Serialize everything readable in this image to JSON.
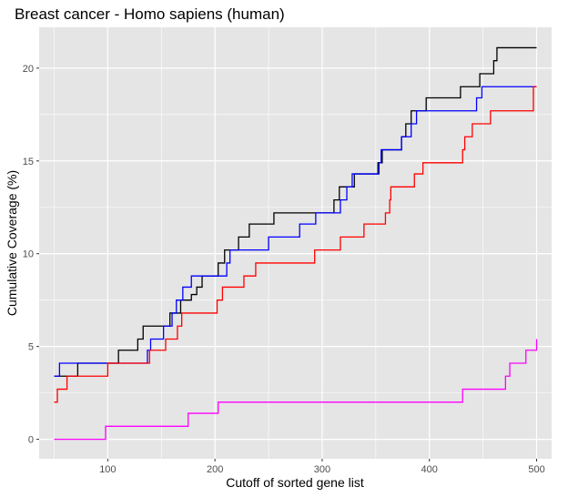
{
  "chart_data": {
    "type": "line",
    "title": "Breast cancer - Homo sapiens (human)",
    "xlabel": "Cutoff of sorted gene list",
    "ylabel": "Cumulative Coverage (%)",
    "xlim": [
      36,
      514
    ],
    "ylim": [
      -1.05,
      22.2
    ],
    "xticks": [
      100,
      200,
      300,
      400,
      500
    ],
    "yticks": [
      0,
      5,
      10,
      15,
      20
    ],
    "grid": true,
    "legend": "none",
    "series": [
      {
        "color": "#000000",
        "step_points": [
          [
            50,
            3.4
          ],
          [
            72,
            4.1
          ],
          [
            110,
            4.8
          ],
          [
            128,
            5.4
          ],
          [
            133,
            6.1
          ],
          [
            152,
            6.1
          ],
          [
            158,
            6.8
          ],
          [
            168,
            7.5
          ],
          [
            178,
            7.8
          ],
          [
            183,
            8.2
          ],
          [
            188,
            8.8
          ],
          [
            196,
            8.8
          ],
          [
            203,
            9.5
          ],
          [
            209,
            10.2
          ],
          [
            222,
            10.9
          ],
          [
            232,
            11.6
          ],
          [
            249,
            11.6
          ],
          [
            255,
            12.2
          ],
          [
            302,
            12.2
          ],
          [
            311,
            12.9
          ],
          [
            316,
            13.6
          ],
          [
            330,
            14.3
          ],
          [
            341,
            14.3
          ],
          [
            352,
            14.9
          ],
          [
            356,
            15.6
          ],
          [
            367,
            15.6
          ],
          [
            374,
            16.3
          ],
          [
            378,
            17.0
          ],
          [
            383,
            17.7
          ],
          [
            397,
            18.4
          ],
          [
            429,
            19.0
          ],
          [
            445,
            19.0
          ],
          [
            447,
            19.7
          ],
          [
            458,
            19.7
          ],
          [
            460,
            20.4
          ],
          [
            463,
            21.1
          ],
          [
            500,
            21.1
          ]
        ]
      },
      {
        "color": "#0000ff",
        "step_points": [
          [
            50,
            3.4
          ],
          [
            55,
            4.1
          ],
          [
            133,
            4.1
          ],
          [
            137,
            4.8
          ],
          [
            140,
            5.4
          ],
          [
            152,
            6.1
          ],
          [
            160,
            6.8
          ],
          [
            164,
            7.5
          ],
          [
            170,
            8.2
          ],
          [
            178,
            8.8
          ],
          [
            209,
            8.8
          ],
          [
            211,
            9.5
          ],
          [
            214,
            10.2
          ],
          [
            244,
            10.2
          ],
          [
            250,
            10.9
          ],
          [
            279,
            11.6
          ],
          [
            294,
            12.2
          ],
          [
            314,
            12.2
          ],
          [
            317,
            12.9
          ],
          [
            323,
            13.6
          ],
          [
            328,
            14.3
          ],
          [
            353,
            14.9
          ],
          [
            355,
            15.6
          ],
          [
            370,
            15.6
          ],
          [
            374,
            16.3
          ],
          [
            383,
            17.0
          ],
          [
            388,
            17.7
          ],
          [
            441,
            17.7
          ],
          [
            444,
            18.4
          ],
          [
            449,
            19.0
          ],
          [
            500,
            19.0
          ]
        ]
      },
      {
        "color": "#ff0000",
        "step_points": [
          [
            50,
            2.0
          ],
          [
            53,
            2.7
          ],
          [
            62,
            3.4
          ],
          [
            97,
            3.4
          ],
          [
            100,
            4.1
          ],
          [
            135,
            4.1
          ],
          [
            139,
            4.8
          ],
          [
            151,
            4.8
          ],
          [
            154,
            5.4
          ],
          [
            161,
            5.4
          ],
          [
            165,
            6.1
          ],
          [
            169,
            6.8
          ],
          [
            198,
            6.8
          ],
          [
            202,
            7.5
          ],
          [
            207,
            8.2
          ],
          [
            221,
            8.2
          ],
          [
            227,
            8.8
          ],
          [
            238,
            9.5
          ],
          [
            289,
            9.5
          ],
          [
            293,
            10.2
          ],
          [
            310,
            10.2
          ],
          [
            317,
            10.9
          ],
          [
            336,
            10.9
          ],
          [
            339,
            11.6
          ],
          [
            357,
            11.6
          ],
          [
            359,
            12.2
          ],
          [
            363,
            12.9
          ],
          [
            364,
            13.6
          ],
          [
            382,
            13.6
          ],
          [
            386,
            14.3
          ],
          [
            394,
            14.9
          ],
          [
            429,
            14.9
          ],
          [
            431,
            15.6
          ],
          [
            433,
            16.3
          ],
          [
            438,
            16.3
          ],
          [
            440,
            17.0
          ],
          [
            455,
            17.0
          ],
          [
            457,
            17.7
          ],
          [
            495,
            17.7
          ],
          [
            497,
            19.0
          ],
          [
            500,
            19.0
          ]
        ]
      },
      {
        "color": "#ff00ff",
        "step_points": [
          [
            50,
            0.0
          ],
          [
            96,
            0.0
          ],
          [
            98,
            0.7
          ],
          [
            173,
            0.7
          ],
          [
            175,
            1.4
          ],
          [
            201,
            1.4
          ],
          [
            203,
            2.0
          ],
          [
            429,
            2.0
          ],
          [
            431,
            2.7
          ],
          [
            470,
            2.7
          ],
          [
            471,
            3.4
          ],
          [
            475,
            4.1
          ],
          [
            489,
            4.1
          ],
          [
            490,
            4.8
          ],
          [
            498,
            4.8
          ],
          [
            500,
            5.4
          ]
        ]
      }
    ]
  }
}
